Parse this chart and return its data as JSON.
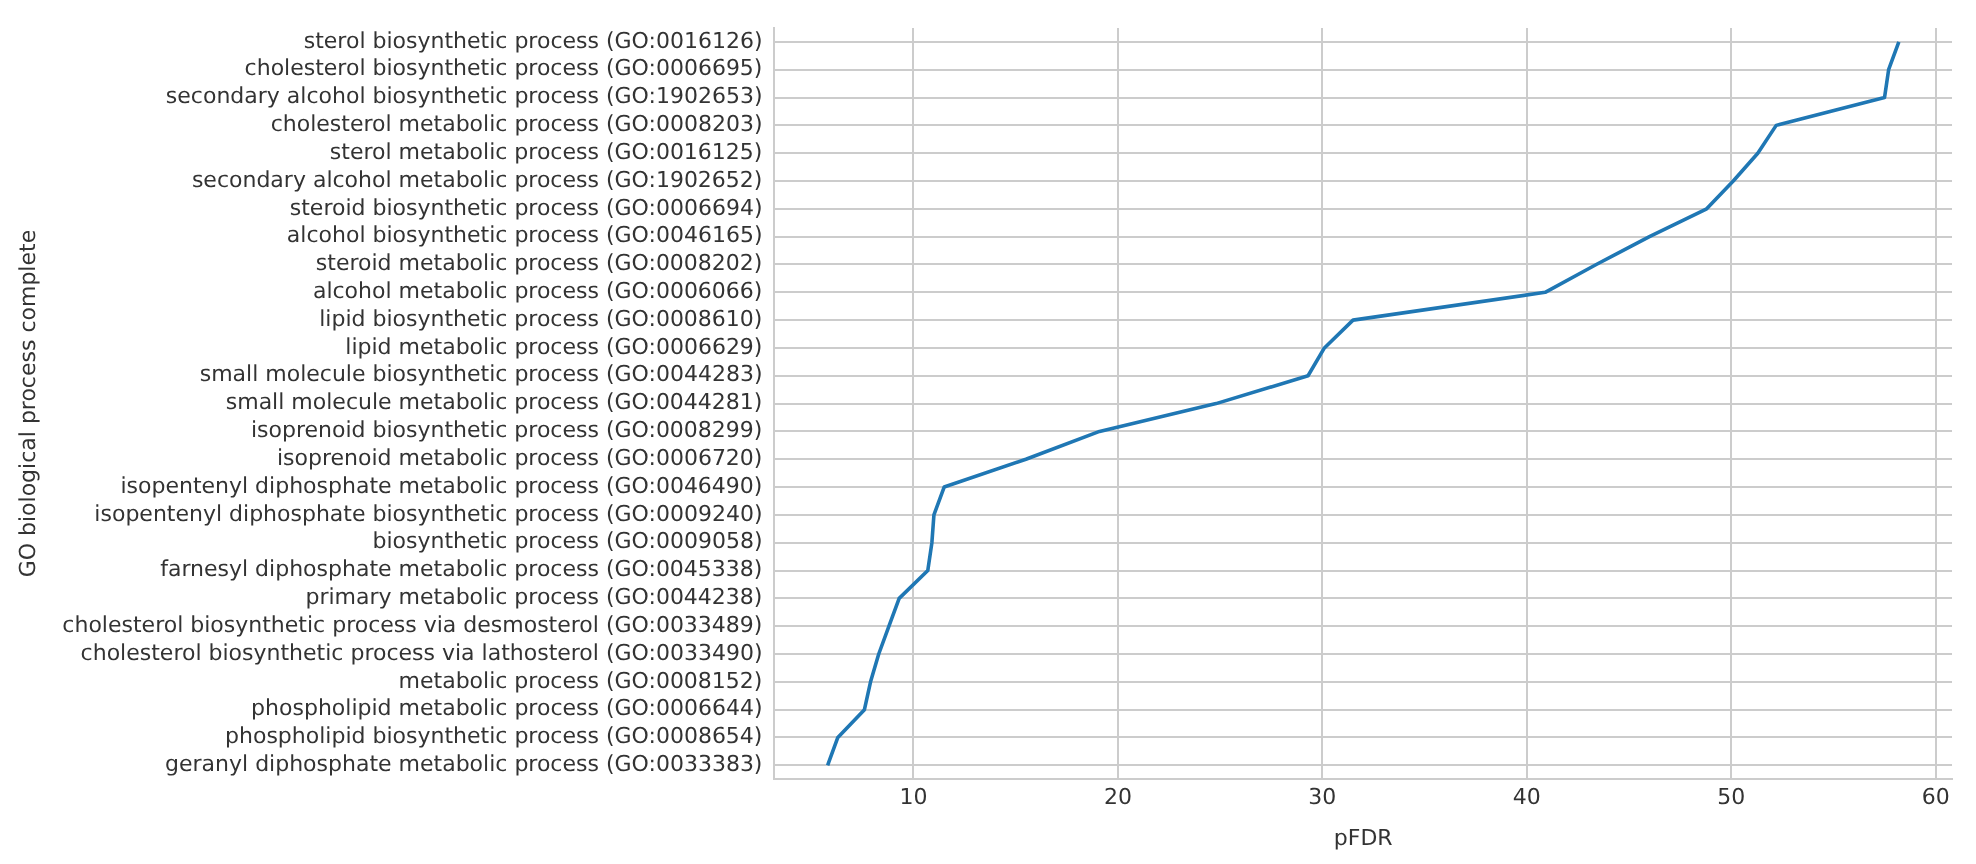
{
  "chart_data": {
    "type": "line",
    "xlabel": "pFDR",
    "ylabel": "GO biological process complete",
    "categories": [
      "sterol biosynthetic process (GO:0016126)",
      "cholesterol biosynthetic process (GO:0006695)",
      "secondary alcohol biosynthetic process (GO:1902653)",
      "cholesterol metabolic process (GO:0008203)",
      "sterol metabolic process (GO:0016125)",
      "secondary alcohol metabolic process (GO:1902652)",
      "steroid biosynthetic process (GO:0006694)",
      "alcohol biosynthetic process (GO:0046165)",
      "steroid metabolic process (GO:0008202)",
      "alcohol metabolic process (GO:0006066)",
      "lipid biosynthetic process (GO:0008610)",
      "lipid metabolic process (GO:0006629)",
      "small molecule biosynthetic process (GO:0044283)",
      "small molecule metabolic process (GO:0044281)",
      "isoprenoid biosynthetic process (GO:0008299)",
      "isoprenoid metabolic process (GO:0006720)",
      "isopentenyl diphosphate metabolic process (GO:0046490)",
      "isopentenyl diphosphate biosynthetic process (GO:0009240)",
      "biosynthetic process (GO:0009058)",
      "farnesyl diphosphate metabolic process (GO:0045338)",
      "primary metabolic process (GO:0044238)",
      "cholesterol biosynthetic process via desmosterol (GO:0033489)",
      "cholesterol biosynthetic process via lathosterol (GO:0033490)",
      "metabolic process (GO:0008152)",
      "phospholipid metabolic process (GO:0006644)",
      "phospholipid biosynthetic process (GO:0008654)",
      "geranyl diphosphate metabolic process (GO:0033383)"
    ],
    "orientation": "horizontal",
    "series": [
      {
        "color": "#1f77b4",
        "values": [
          58.2,
          57.7,
          57.5,
          52.2,
          51.3,
          50.1,
          48.8,
          46.0,
          43.4,
          40.9,
          31.5,
          30.1,
          29.3,
          24.8,
          19.1,
          15.5,
          11.5,
          11.0,
          10.9,
          10.7,
          9.3,
          8.8,
          8.3,
          7.9,
          7.6,
          6.3,
          5.8
        ]
      }
    ],
    "xlim": [
      3.2,
      60.8
    ],
    "xticks": [
      10,
      20,
      30,
      40,
      50,
      60
    ],
    "grid": true,
    "legend": false,
    "marker": "none",
    "line_style": "solid"
  }
}
